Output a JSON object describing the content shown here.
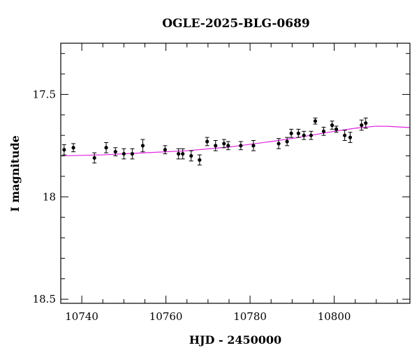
{
  "chart_data": {
    "type": "scatter",
    "title": "OGLE-2025-BLG-0689",
    "xlabel": "HJD - 2450000",
    "ylabel": "I magnitude",
    "xlim": [
      10735,
      10818
    ],
    "ylim": [
      18.52,
      17.25
    ],
    "y_inverted": true,
    "grid": false,
    "x_ticks": [
      10740,
      10760,
      10780,
      10800
    ],
    "x_tick_labels": [
      "10740",
      "10760",
      "10780",
      "10800"
    ],
    "y_ticks": [
      17.5,
      18,
      18.5
    ],
    "y_tick_labels": [
      "17.5",
      "18",
      "18.5"
    ],
    "model_color": "#e020e0",
    "points_color": "#000000",
    "series": [
      {
        "kind": "points",
        "x": [
          10735.8,
          10738.0,
          10743.0,
          10745.8,
          10748.0,
          10750.0,
          10752.0,
          10754.5,
          10759.8,
          10763.0,
          10764.0,
          10766.0,
          10768.0,
          10769.8,
          10771.8,
          10773.8,
          10774.8,
          10777.8,
          10780.8,
          10786.8,
          10788.8,
          10789.8,
          10791.5,
          10792.8,
          10794.5,
          10795.5,
          10797.5,
          10799.5,
          10800.5,
          10802.5,
          10803.8,
          10806.5,
          10807.5
        ],
        "y": [
          17.77,
          17.76,
          17.81,
          17.76,
          17.78,
          17.79,
          17.79,
          17.75,
          17.77,
          17.79,
          17.79,
          17.8,
          17.82,
          17.73,
          17.75,
          17.74,
          17.75,
          17.75,
          17.75,
          17.74,
          17.73,
          17.69,
          17.69,
          17.7,
          17.7,
          17.63,
          17.68,
          17.65,
          17.67,
          17.7,
          17.71,
          17.65,
          17.64
        ],
        "err": [
          0.025,
          0.02,
          0.025,
          0.025,
          0.02,
          0.025,
          0.025,
          0.03,
          0.02,
          0.025,
          0.025,
          0.025,
          0.025,
          0.02,
          0.025,
          0.02,
          0.02,
          0.02,
          0.025,
          0.025,
          0.02,
          0.02,
          0.02,
          0.02,
          0.02,
          0.015,
          0.02,
          0.02,
          0.015,
          0.025,
          0.025,
          0.025,
          0.025
        ]
      },
      {
        "kind": "model",
        "x": [
          10735,
          10745,
          10755,
          10765,
          10775,
          10785,
          10790,
          10795,
          10800,
          10805,
          10810,
          10813,
          10818
        ],
        "y": [
          17.8,
          17.795,
          17.785,
          17.775,
          17.757,
          17.73,
          17.715,
          17.698,
          17.68,
          17.665,
          17.655,
          17.656,
          17.662
        ]
      }
    ]
  }
}
